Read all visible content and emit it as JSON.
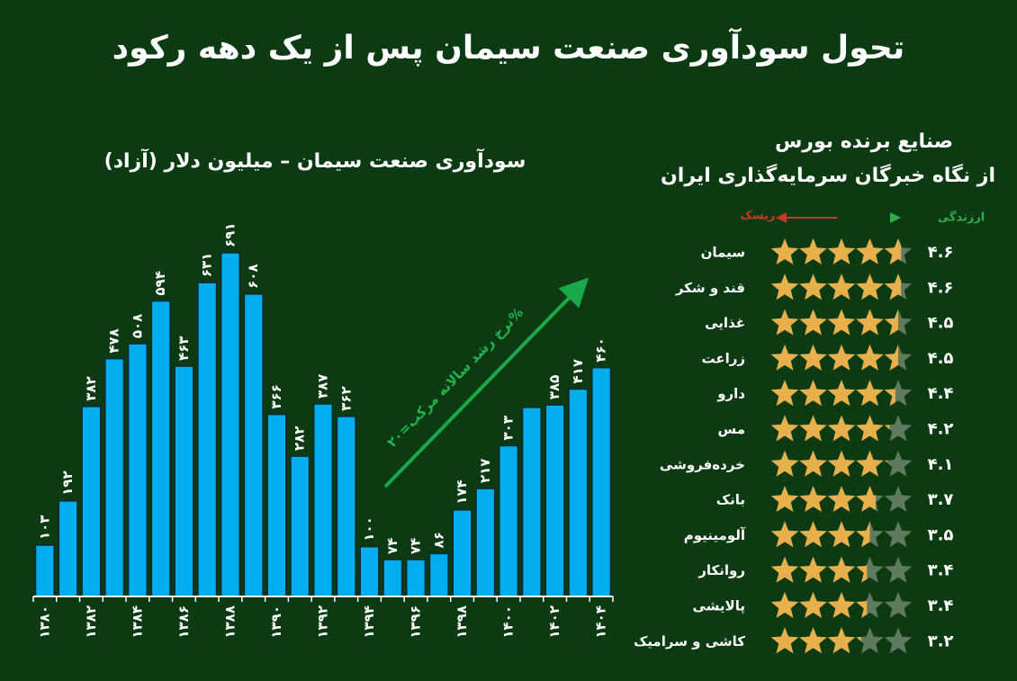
{
  "title": "تحول سودآوری صنعت سیمان پس از یک دهه رکود",
  "chart_data": {
    "type": "bar",
    "title": "سودآوری صنعت سیمان – میلیون دلار (آزاد)",
    "categories": [
      "۱۳۸۰",
      null,
      "۱۳۸۲",
      null,
      "۱۳۸۴",
      null,
      "۱۳۸۶",
      null,
      "۱۳۸۸",
      null,
      "۱۳۹۰",
      null,
      "۱۳۹۲",
      null,
      "۱۳۹۴",
      null,
      "۱۳۹۶",
      null,
      "۱۳۹۸",
      null,
      "۱۴۰۰",
      null,
      "۱۴۰۲",
      null,
      "۱۴۰۴"
    ],
    "values": [
      103,
      192,
      382,
      478,
      508,
      594,
      463,
      631,
      691,
      608,
      366,
      282,
      387,
      362,
      100,
      74,
      74,
      86,
      174,
      217,
      303,
      380,
      385,
      417,
      460
    ],
    "value_labels": [
      "۱۰۳",
      "۱۹۲",
      "۳۸۲",
      "۴۷۸",
      "۵۰۸",
      "۵۹۴",
      "۴۶۳",
      "۶۳۱",
      "۶۹۱",
      "۶۰۸",
      "۳۶۶",
      "۲۸۲",
      "۳۸۷",
      "۳۶۲",
      "۱۰۰",
      "۷۴",
      "۷۴",
      "۸۶",
      "۱۷۴",
      "۲۱۷",
      "۳۰۳",
      null,
      "۳۸۵",
      "۴۱۷",
      "۴۶۰"
    ],
    "color": "#00aeef",
    "ylim": [
      0,
      700
    ],
    "annotation": "نرخ رشد سالانه مرکب=۲۰%"
  },
  "ratings": {
    "title_lines": [
      "صنایع برنده بورس",
      "از نگاه خبرگان سرمایه‌گذاری ایران"
    ],
    "legend_value": "ارزندگی",
    "legend_risk": "ریسک",
    "max_stars": 5,
    "star_color": "#e8b04b",
    "empty_color": "#5f7a5f",
    "items": [
      {
        "name": "سیمان",
        "score": 4.6,
        "label": "۴.۶"
      },
      {
        "name": "قند و شکر",
        "score": 4.6,
        "label": "۴.۶"
      },
      {
        "name": "غذایی",
        "score": 4.5,
        "label": "۴.۵"
      },
      {
        "name": "زراعت",
        "score": 4.5,
        "label": "۴.۵"
      },
      {
        "name": "دارو",
        "score": 4.4,
        "label": "۴.۴"
      },
      {
        "name": "مس",
        "score": 4.2,
        "label": "۴.۲"
      },
      {
        "name": "خرده‌فروشی",
        "score": 4.1,
        "label": "۴.۱"
      },
      {
        "name": "بانک",
        "score": 3.7,
        "label": "۳.۷"
      },
      {
        "name": "آلومینیوم",
        "score": 3.5,
        "label": "۳.۵"
      },
      {
        "name": "روانکار",
        "score": 3.4,
        "label": "۳.۴"
      },
      {
        "name": "پالایشی",
        "score": 3.4,
        "label": "۳.۴"
      },
      {
        "name": "کاشی و سرامیک",
        "score": 3.2,
        "label": "۳.۲"
      }
    ]
  }
}
